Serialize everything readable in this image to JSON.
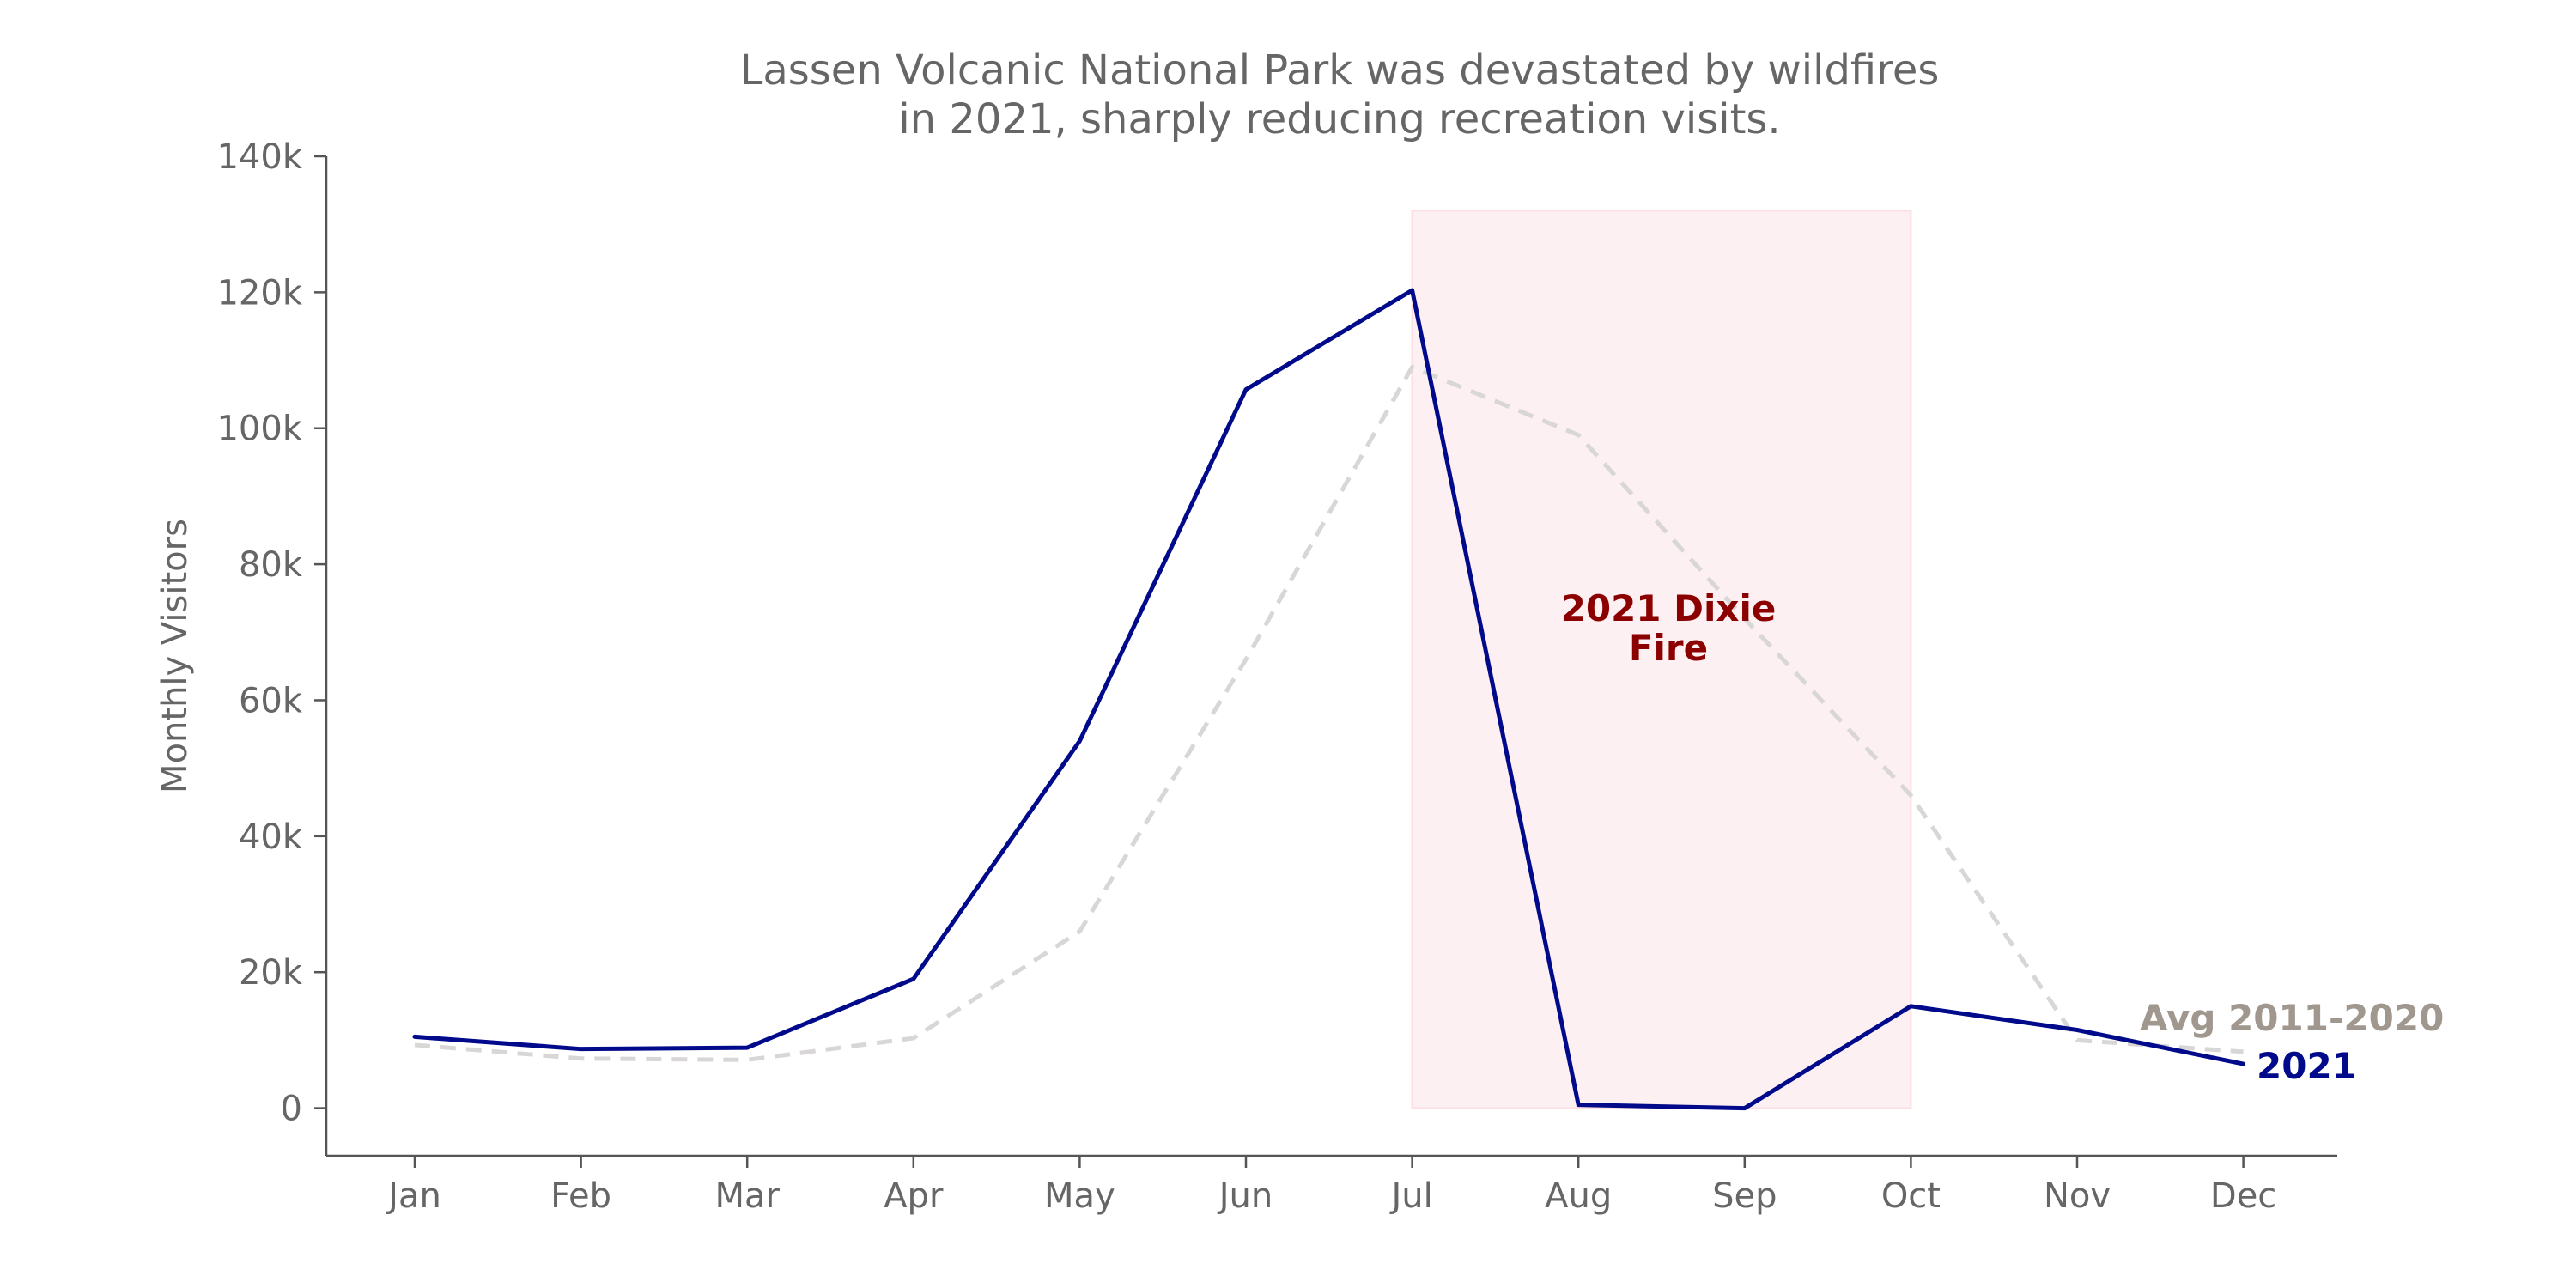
{
  "chart_data": {
    "type": "line",
    "title_lines": [
      "Lassen Volcanic National Park was devastated by wildfires",
      "in 2021, sharply reducing recreation visits."
    ],
    "xlabel": "",
    "ylabel": "Monthly Visitors",
    "categories": [
      "Jan",
      "Feb",
      "Mar",
      "Apr",
      "May",
      "Jun",
      "Jul",
      "Aug",
      "Sep",
      "Oct",
      "Nov",
      "Dec"
    ],
    "ylim": [
      -7000,
      140000
    ],
    "yticks": [
      0,
      20000,
      40000,
      60000,
      80000,
      100000,
      120000,
      140000
    ],
    "ytick_labels": [
      "0",
      "20k",
      "40k",
      "60k",
      "80k",
      "100k",
      "120k",
      "140k"
    ],
    "grid": false,
    "series": [
      {
        "name": "Avg 2011-2020",
        "color": "#d9d6d6",
        "label_color": "#a0978e",
        "style": "dashed",
        "values": [
          9300,
          7300,
          7100,
          10300,
          26000,
          66000,
          109000,
          99000,
          72000,
          46000,
          10000,
          8300
        ]
      },
      {
        "name": "2021",
        "color": "#000a8a",
        "label_color": "#000a8a",
        "style": "solid",
        "values": [
          10500,
          8700,
          8900,
          19000,
          54000,
          105700,
          120300,
          500,
          0,
          15000,
          11500,
          6500
        ]
      }
    ],
    "annotations": [
      {
        "text_lines": [
          "2021 Dixie",
          "Fire"
        ],
        "color": "#8b0000",
        "span_start": "Jul",
        "span_end": "Oct",
        "span_top": 132000,
        "span_bottom": 0,
        "span_fill": "#fdf0f2",
        "span_edge": "#fbdde2"
      }
    ]
  }
}
